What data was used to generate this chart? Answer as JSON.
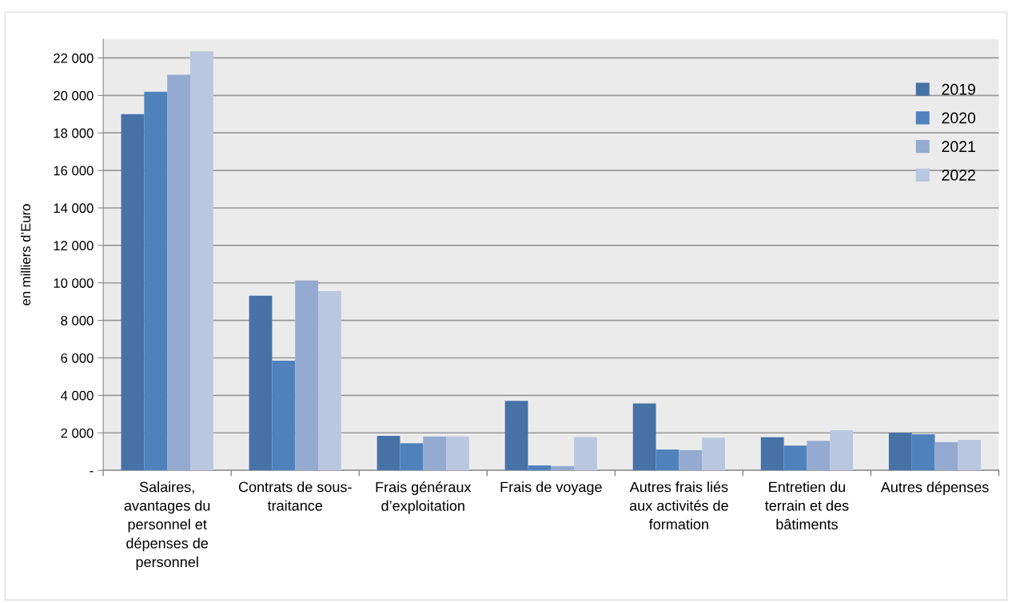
{
  "chart_data": {
    "type": "bar",
    "ylabel": "en milliers d’Euro",
    "categories": [
      "Salaires,\navantages du\npersonnel et\ndépenses de\npersonnel",
      "Contrats de sous-\ntraitance",
      "Frais généraux\nd’exploitation",
      "Frais de voyage",
      "Autres frais liés\naux activités de\nformation",
      "Entretien du\nterrain et des\nbâtiments",
      "Autres dépenses"
    ],
    "series": [
      {
        "name": "2019",
        "color": "#4672a6",
        "values": [
          19000,
          9320,
          1840,
          3710,
          3570,
          1760,
          2010
        ]
      },
      {
        "name": "2020",
        "color": "#4f81bd",
        "values": [
          20200,
          5850,
          1450,
          260,
          1110,
          1320,
          1930
        ]
      },
      {
        "name": "2021",
        "color": "#95aad1",
        "values": [
          21100,
          10130,
          1810,
          230,
          1080,
          1570,
          1510
        ]
      },
      {
        "name": "2022",
        "color": "#bac7e0",
        "values": [
          22350,
          9560,
          1810,
          1780,
          1740,
          2140,
          1630
        ]
      }
    ],
    "ylim": [
      0,
      23000
    ],
    "yticks": [
      {
        "value": 0,
        "label": "-"
      },
      {
        "value": 2000,
        "label": "2 000"
      },
      {
        "value": 4000,
        "label": "4 000"
      },
      {
        "value": 6000,
        "label": "6 000"
      },
      {
        "value": 8000,
        "label": "8 000"
      },
      {
        "value": 10000,
        "label": "10 000"
      },
      {
        "value": 12000,
        "label": "12 000"
      },
      {
        "value": 14000,
        "label": "14 000"
      },
      {
        "value": 16000,
        "label": "16 000"
      },
      {
        "value": 18000,
        "label": "18 000"
      },
      {
        "value": 20000,
        "label": "20 000"
      },
      {
        "value": 22000,
        "label": "22 000"
      }
    ],
    "grid": "y",
    "legend": "top right"
  }
}
